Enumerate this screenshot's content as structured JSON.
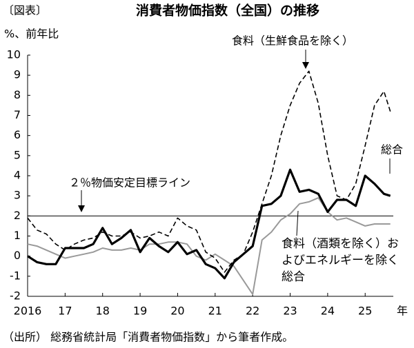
{
  "chart_data": {
    "type": "line",
    "figure_label": "〔図表〕",
    "title": "消費者物価指数（全国）の推移",
    "y_label": "%、前年比",
    "x_label": "年",
    "source": "（出所） 総務省統計局「消費者物価指数」から筆者作成。",
    "target": {
      "value": 2,
      "label": "２％物価安定目標ライン"
    },
    "xlim": [
      2016,
      2025.75
    ],
    "xticks": [
      2016,
      {
        "value": 2017,
        "label": "17"
      },
      {
        "value": 2018,
        "label": "18"
      },
      {
        "value": 2019,
        "label": "19"
      },
      {
        "value": 2020,
        "label": "20"
      },
      {
        "value": 2021,
        "label": "21"
      },
      {
        "value": 2022,
        "label": "22"
      },
      {
        "value": 2023,
        "label": "23"
      },
      {
        "value": 2024,
        "label": "24"
      },
      {
        "value": 2025,
        "label": "25"
      }
    ],
    "ylim": [
      -2,
      10
    ],
    "yticks": [
      -2,
      -1,
      0,
      1,
      2,
      3,
      4,
      5,
      6,
      7,
      8,
      9,
      10
    ],
    "x": [
      2016,
      2016.25,
      2016.5,
      2016.75,
      2017,
      2017.25,
      2017.5,
      2017.75,
      2018,
      2018.25,
      2018.5,
      2018.75,
      2019,
      2019.25,
      2019.5,
      2019.75,
      2020,
      2020.25,
      2020.5,
      2020.75,
      2021,
      2021.25,
      2021.5,
      2021.75,
      2022,
      2022.25,
      2022.5,
      2022.75,
      2023,
      2023.25,
      2023.5,
      2023.75,
      2024,
      2024.25,
      2024.5,
      2024.75,
      2025,
      2025.25,
      2025.5,
      2025.67
    ],
    "series": [
      {
        "name": "総合",
        "color": "#000000",
        "style": "solid",
        "width": 3.2,
        "values": [
          0,
          -0.3,
          -0.4,
          -0.4,
          0.4,
          0.4,
          0.4,
          0.6,
          1.4,
          0.6,
          0.9,
          1.3,
          0.2,
          0.9,
          0.5,
          0.2,
          0.7,
          0.1,
          0.3,
          -0.4,
          -0.6,
          -1.1,
          -0.3,
          0.1,
          0.5,
          2.5,
          2.6,
          3.0,
          4.3,
          3.2,
          3.3,
          3.1,
          2.2,
          2.8,
          2.8,
          2.5,
          4.0,
          3.6,
          3.1,
          3.0
        ]
      },
      {
        "name": "食料（生鮮食品を除く）",
        "color": "#000000",
        "style": "dashed",
        "width": 1.6,
        "values": [
          1.9,
          1.3,
          1.1,
          0.6,
          0.3,
          0.6,
          0.8,
          0.9,
          1.2,
          1.0,
          1.0,
          1.2,
          0.9,
          1.0,
          1.2,
          1.0,
          1.9,
          1.5,
          1.3,
          0.2,
          -0.1,
          -0.8,
          -0.2,
          0.1,
          1.2,
          2.6,
          4.0,
          6.0,
          7.5,
          8.6,
          9.2,
          7.6,
          5.0,
          3.0,
          2.8,
          3.6,
          5.5,
          7.5,
          8.2,
          7.2
        ]
      },
      {
        "name": "食料（酒類を除く）およびエネルギーを除く総合",
        "color": "#999999",
        "style": "solid",
        "width": 2,
        "values": [
          0.6,
          0.5,
          0.3,
          0.1,
          -0.1,
          0.0,
          0.1,
          0.2,
          0.4,
          0.3,
          0.3,
          0.4,
          0.3,
          0.6,
          0.6,
          0.7,
          0.7,
          0.6,
          0.0,
          -0.2,
          0.1,
          -0.2,
          -0.5,
          -1.2,
          -1.9,
          0.8,
          1.2,
          1.8,
          2.1,
          2.6,
          2.7,
          2.9,
          2.2,
          1.8,
          1.9,
          1.7,
          1.5,
          1.6,
          1.6,
          1.6
        ]
      }
    ]
  }
}
